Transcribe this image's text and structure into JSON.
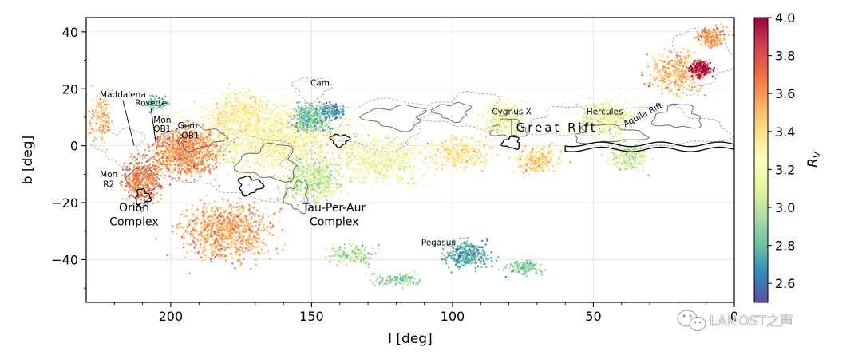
{
  "chart_data": {
    "type": "scatter",
    "title": "",
    "xlabel": "l [deg]",
    "ylabel": "b [deg]",
    "xlim": [
      230,
      0
    ],
    "ylim": [
      -55,
      45
    ],
    "x_ticks": [
      200,
      150,
      100,
      50,
      0
    ],
    "y_ticks": [
      40,
      20,
      0,
      -20,
      -40
    ],
    "grid": true,
    "colorbar": {
      "label": "R_V",
      "range": [
        2.5,
        4.0
      ],
      "ticks": [
        "2.6",
        "2.8",
        "3.0",
        "3.2",
        "3.4",
        "3.6",
        "3.8",
        "4.0"
      ],
      "colormap": "Spectral_r",
      "colors": [
        "#5e4fa2",
        "#3288bd",
        "#66c2a5",
        "#abdda4",
        "#e6f598",
        "#ffffbf",
        "#fee08b",
        "#fdae61",
        "#f46d43",
        "#d53e4f",
        "#9e0142"
      ]
    },
    "annotations": [
      {
        "text": "Maddalena",
        "l": 217,
        "b": 17,
        "size": "small"
      },
      {
        "text": "Rosette",
        "l": 207,
        "b": 14,
        "size": "small"
      },
      {
        "text": "Mon",
        "l": 203,
        "b": 8,
        "size": "small"
      },
      {
        "text": "OB1",
        "l": 203,
        "b": 5,
        "size": "small"
      },
      {
        "text": "Gem",
        "l": 194,
        "b": 6,
        "size": "small"
      },
      {
        "text": "OB1",
        "l": 193,
        "b": 2.5,
        "size": "small"
      },
      {
        "text": "Cam",
        "l": 147,
        "b": 21,
        "size": "small"
      },
      {
        "text": "Cygnus X",
        "l": 79,
        "b": 11,
        "size": "small"
      },
      {
        "text": "Great Rift",
        "l": 63,
        "b": 5,
        "size": "rift"
      },
      {
        "text": "Hercules",
        "l": 46,
        "b": 11,
        "size": "small"
      },
      {
        "text": "Aquila Rift",
        "l": 32,
        "b": 10,
        "size": "small",
        "rotate": -28
      },
      {
        "text": "Mon",
        "l": 222,
        "b": -11,
        "size": "small"
      },
      {
        "text": "R2",
        "l": 222,
        "b": -14.5,
        "size": "small"
      },
      {
        "text": "Orion",
        "l": 213,
        "b": -23,
        "size": "large"
      },
      {
        "text": "Complex",
        "l": 213,
        "b": -28,
        "size": "large"
      },
      {
        "text": "Tau-Per-Aur",
        "l": 142,
        "b": -23,
        "size": "large"
      },
      {
        "text": "Complex",
        "l": 142,
        "b": -28,
        "size": "large"
      },
      {
        "text": "Pegasus",
        "l": 105,
        "b": -35,
        "size": "small"
      }
    ],
    "clusters": [
      {
        "l": 165,
        "b": 2,
        "sl": 30,
        "sb": 13,
        "rv": 3.25,
        "n": 1700
      },
      {
        "l": 195,
        "b": -2,
        "sl": 13,
        "sb": 9,
        "rv": 3.6,
        "n": 900
      },
      {
        "l": 180,
        "b": -30,
        "sl": 18,
        "sb": 11,
        "rv": 3.55,
        "n": 900
      },
      {
        "l": 210,
        "b": -12,
        "sl": 8,
        "sb": 8,
        "rv": 3.65,
        "n": 450
      },
      {
        "l": 175,
        "b": 12,
        "sl": 14,
        "sb": 7,
        "rv": 3.3,
        "n": 500
      },
      {
        "l": 150,
        "b": 10,
        "sl": 7,
        "sb": 5,
        "rv": 2.85,
        "n": 380
      },
      {
        "l": 150,
        "b": -12,
        "sl": 12,
        "sb": 9,
        "rv": 3.05,
        "n": 650
      },
      {
        "l": 125,
        "b": -5,
        "sl": 16,
        "sb": 9,
        "rv": 3.2,
        "n": 650
      },
      {
        "l": 98,
        "b": -3,
        "sl": 12,
        "sb": 6,
        "rv": 3.35,
        "n": 380
      },
      {
        "l": 82,
        "b": 9,
        "sl": 9,
        "sb": 7,
        "rv": 3.2,
        "n": 330
      },
      {
        "l": 70,
        "b": -5,
        "sl": 9,
        "sb": 5,
        "rv": 3.4,
        "n": 280
      },
      {
        "l": 45,
        "b": 10,
        "sl": 12,
        "sb": 7,
        "rv": 3.2,
        "n": 420
      },
      {
        "l": 38,
        "b": -4,
        "sl": 8,
        "sb": 5,
        "rv": 3.05,
        "n": 220
      },
      {
        "l": 20,
        "b": 26,
        "sl": 11,
        "sb": 8,
        "rv": 3.5,
        "n": 420
      },
      {
        "l": 12,
        "b": 27,
        "sl": 4,
        "sb": 3,
        "rv": 3.95,
        "n": 200
      },
      {
        "l": 8,
        "b": 38,
        "sl": 6,
        "sb": 4,
        "rv": 3.6,
        "n": 200
      },
      {
        "l": 95,
        "b": -38,
        "sl": 9,
        "sb": 5,
        "rv": 2.75,
        "n": 320
      },
      {
        "l": 75,
        "b": -43,
        "sl": 7,
        "sb": 3,
        "rv": 2.9,
        "n": 130
      },
      {
        "l": 135,
        "b": -38,
        "sl": 9,
        "sb": 4,
        "rv": 3.0,
        "n": 170
      },
      {
        "l": 120,
        "b": -47,
        "sl": 10,
        "sb": 3,
        "rv": 2.9,
        "n": 110
      },
      {
        "l": 143,
        "b": 12,
        "sl": 5,
        "sb": 3,
        "rv": 2.7,
        "n": 120
      },
      {
        "l": 225,
        "b": 10,
        "sl": 5,
        "sb": 10,
        "rv": 3.5,
        "n": 150
      },
      {
        "l": 205,
        "b": 15,
        "sl": 4,
        "sb": 3,
        "rv": 2.8,
        "n": 60
      }
    ]
  },
  "watermark": {
    "text": "LAMOST之声",
    "icon": "wechat-icon"
  }
}
